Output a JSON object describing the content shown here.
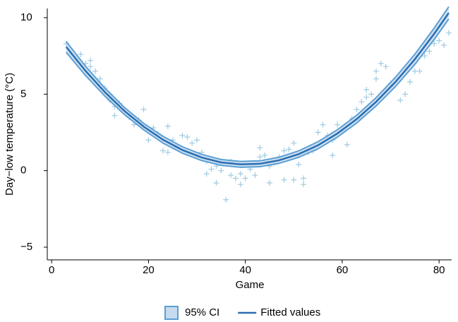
{
  "chart_data": {
    "type": "scatter",
    "xlabel": "Game",
    "ylabel": "Day−low temperature (°C)",
    "xlim": [
      -0.9,
      82.6
    ],
    "ylim": [
      -5.83,
      10.6
    ],
    "xticks": [
      0,
      20,
      40,
      60,
      80
    ],
    "yticks": [
      {
        "value": -5,
        "label": "−5"
      },
      0,
      5,
      10
    ],
    "legend": "bottom",
    "points": {
      "color": "#9ecae1",
      "x": [
        3,
        4,
        5,
        6,
        7,
        8,
        8,
        9,
        10,
        11,
        12,
        12,
        13,
        13,
        14,
        15,
        16,
        17,
        18,
        19,
        20,
        21,
        22,
        23,
        24,
        24,
        25,
        26,
        27,
        28,
        29,
        30,
        30,
        31,
        32,
        32,
        33,
        34,
        34,
        35,
        35,
        36,
        37,
        37,
        38,
        39,
        39,
        40,
        41,
        42,
        43,
        43,
        44,
        45,
        45,
        46,
        47,
        48,
        48,
        49,
        50,
        50,
        51,
        52,
        52,
        53,
        54,
        55,
        56,
        57,
        58,
        58,
        59,
        60,
        61,
        62,
        63,
        64,
        65,
        65,
        66,
        67,
        67,
        68,
        69,
        70,
        71,
        72,
        73,
        74,
        75,
        76,
        77,
        78,
        79,
        80,
        81,
        82
      ],
      "y": [
        8.3,
        7.6,
        7.3,
        7.6,
        7.0,
        6.8,
        7.2,
        6.5,
        6.0,
        5.4,
        5.0,
        4.6,
        4.2,
        3.6,
        4.4,
        4.0,
        3.5,
        3.0,
        3.3,
        4.0,
        2.0,
        2.8,
        2.4,
        1.3,
        2.9,
        1.2,
        2.0,
        1.5,
        2.3,
        2.2,
        1.8,
        1.0,
        2.0,
        1.2,
        0.6,
        -0.2,
        0.1,
        -0.8,
        0.3,
        0.5,
        0.0,
        -1.9,
        -0.3,
        0.6,
        -0.5,
        -0.9,
        -0.2,
        -0.5,
        0.1,
        -0.3,
        1.5,
        0.9,
        1.0,
        0.3,
        -0.8,
        0.5,
        0.9,
        1.3,
        -0.6,
        1.4,
        1.8,
        -0.6,
        0.4,
        -0.5,
        -0.9,
        1.2,
        1.3,
        2.5,
        3.0,
        2.3,
        2.0,
        1.0,
        3.0,
        2.6,
        1.7,
        3.4,
        4.0,
        4.5,
        5.3,
        4.8,
        5.0,
        6.5,
        6.0,
        7.0,
        6.8,
        5.7,
        6.0,
        4.6,
        5.0,
        5.8,
        6.5,
        6.5,
        7.5,
        7.8,
        8.3,
        8.5,
        8.2,
        9.0
      ]
    },
    "series": [
      {
        "name": "95% CI",
        "type": "band",
        "color": "#c6dbef",
        "edge": "#5a9fd4",
        "x": [
          3,
          7,
          11,
          15,
          19,
          23,
          27,
          31,
          35,
          39,
          43,
          47,
          51,
          55,
          59,
          63,
          67,
          71,
          75,
          79,
          82
        ],
        "lower": [
          7.74,
          6.22,
          4.87,
          3.68,
          2.67,
          1.8,
          1.14,
          0.66,
          0.35,
          0.22,
          0.26,
          0.48,
          0.87,
          1.43,
          2.19,
          3.12,
          4.23,
          5.5,
          6.95,
          8.58,
          9.91
        ],
        "upper": [
          8.44,
          6.82,
          5.39,
          4.14,
          3.09,
          2.24,
          1.56,
          1.06,
          0.73,
          0.6,
          0.64,
          0.88,
          1.29,
          1.89,
          2.67,
          3.62,
          4.77,
          6.1,
          7.61,
          9.32,
          10.71
        ]
      },
      {
        "name": "Fitted values",
        "type": "line",
        "color": "#2a6db0",
        "x": [
          3,
          7,
          11,
          15,
          19,
          23,
          27,
          31,
          35,
          39,
          43,
          47,
          51,
          55,
          59,
          63,
          67,
          71,
          75,
          79,
          82
        ],
        "values": [
          8.09,
          6.52,
          5.13,
          3.91,
          2.88,
          2.02,
          1.35,
          0.86,
          0.54,
          0.41,
          0.45,
          0.68,
          1.08,
          1.66,
          2.43,
          3.37,
          4.5,
          5.8,
          7.28,
          8.95,
          10.31
        ]
      }
    ]
  }
}
